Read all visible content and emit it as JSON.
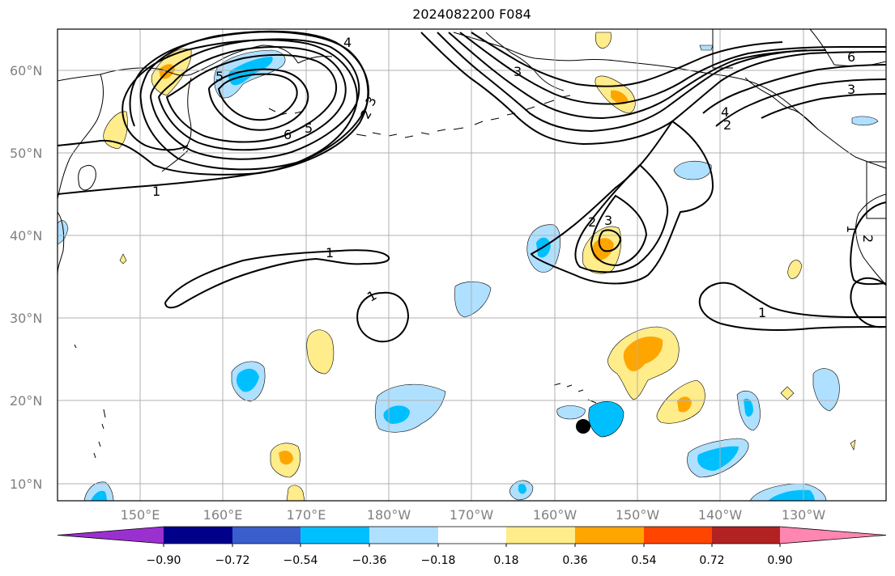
{
  "title": "2024082200 F084",
  "lat_labels": [
    "60°N",
    "50°N",
    "40°N",
    "30°N",
    "20°N",
    "10°N"
  ],
  "lon_labels": [
    "150°E",
    "160°E",
    "170°E",
    "180°W",
    "170°W",
    "160°W",
    "150°W",
    "140°W",
    "130°W"
  ],
  "colorbar": {
    "colors": [
      "#9b30d0",
      "#00008b",
      "#3a5fcd",
      "#00bfff",
      "#b0e0ff",
      "#ffffff",
      "#ffec8b",
      "#ffa500",
      "#ff4500",
      "#b22222",
      "#ff86b0"
    ],
    "tick_labels": [
      "−0.90",
      "−0.72",
      "−0.54",
      "−0.36",
      "−0.18",
      "0.18",
      "0.36",
      "0.54",
      "0.72",
      "0.90"
    ]
  },
  "contour_labels": [
    "1",
    "1",
    "1",
    "1",
    "1",
    "2",
    "2",
    "2",
    "2",
    "3",
    "3",
    "3",
    "3",
    "4",
    "4",
    "5",
    "5",
    "6",
    "6"
  ],
  "colors": {
    "grid": "#b0b0b0",
    "contour": "#000000",
    "coast": "#000000"
  },
  "marker": "black-dot"
}
